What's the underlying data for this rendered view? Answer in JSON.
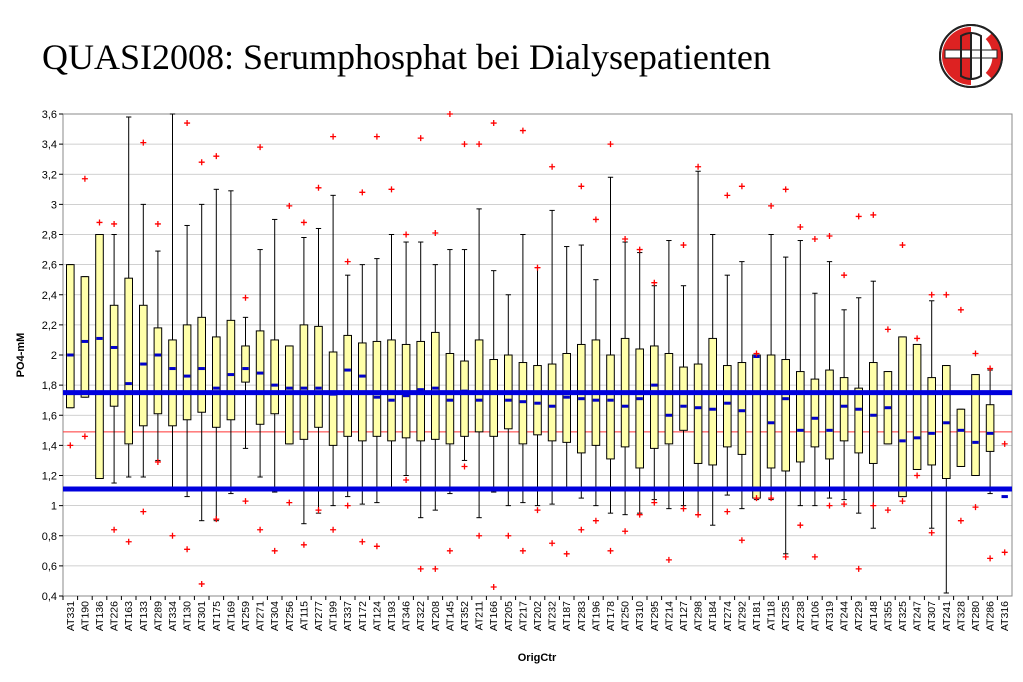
{
  "title": "QUASI2008: Serumphosphat bei Dialysepatienten",
  "colors": {
    "box_fill": "#ffffaa",
    "median": "#0000cc",
    "outlier": "#ff0000",
    "limit_line": "#0000dd",
    "mean_line": "#ff3333",
    "grid": "#c0c0c0",
    "logo_red": "#dd2222"
  },
  "logo": {
    "icon": "lab-emblem-icon"
  },
  "chart_data": {
    "type": "boxplot",
    "title": "",
    "xlabel": "OrigCtr",
    "ylabel": "PO4-mM",
    "ylim": [
      0.4,
      3.6
    ],
    "yticks": [
      "0,4",
      "0,6",
      "0,8",
      "1",
      "1,2",
      "1,4",
      "1,6",
      "1,8",
      "2",
      "2,2",
      "2,4",
      "2,6",
      "2,8",
      "3",
      "3,2",
      "3,4",
      "3,6"
    ],
    "grid": true,
    "reference_lines": [
      {
        "value": 1.75,
        "style": "thick-blue"
      },
      {
        "value": 1.11,
        "style": "thick-blue"
      },
      {
        "value": 1.49,
        "style": "thin-red"
      }
    ],
    "categories": [
      "AT331",
      "AT190",
      "AT136",
      "AT226",
      "AT163",
      "AT133",
      "AT289",
      "AT334",
      "AT130",
      "AT301",
      "AT175",
      "AT169",
      "AT259",
      "AT271",
      "AT304",
      "AT256",
      "AT115",
      "AT277",
      "AT199",
      "AT337",
      "AT172",
      "AT124",
      "AT193",
      "AT346",
      "AT322",
      "AT208",
      "AT145",
      "AT352",
      "AT211",
      "AT166",
      "AT205",
      "AT217",
      "AT202",
      "AT232",
      "AT187",
      "AT283",
      "AT196",
      "AT178",
      "AT250",
      "AT310",
      "AT295",
      "AT214",
      "AT127",
      "AT298",
      "AT184",
      "AT274",
      "AT292",
      "AT181",
      "AT118",
      "AT235",
      "AT238",
      "AT106",
      "AT319",
      "AT244",
      "AT229",
      "AT148",
      "AT355",
      "AT325",
      "AT247",
      "AT307",
      "AT241",
      "AT328",
      "AT280",
      "AT286",
      "AT316"
    ],
    "boxes": [
      {
        "wlo": 1.65,
        "q1": 1.65,
        "med": 2.0,
        "q3": 2.6,
        "whi": 2.6,
        "out": [
          1.4
        ]
      },
      {
        "wlo": 1.72,
        "q1": 1.72,
        "med": 2.09,
        "q3": 2.52,
        "whi": 2.52,
        "out": [
          3.17,
          1.46
        ]
      },
      {
        "wlo": 1.18,
        "q1": 1.18,
        "med": 2.11,
        "q3": 2.8,
        "whi": 2.8,
        "out": [
          2.88
        ]
      },
      {
        "wlo": 1.15,
        "q1": 1.66,
        "med": 2.05,
        "q3": 2.33,
        "whi": 2.8,
        "out": [
          2.87,
          0.84
        ]
      },
      {
        "wlo": 1.19,
        "q1": 1.41,
        "med": 1.81,
        "q3": 2.51,
        "whi": 3.58,
        "out": [
          0.76
        ]
      },
      {
        "wlo": 1.19,
        "q1": 1.53,
        "med": 1.94,
        "q3": 2.33,
        "whi": 3.0,
        "out": [
          3.41,
          0.96
        ]
      },
      {
        "wlo": 1.3,
        "q1": 1.61,
        "med": 2.0,
        "q3": 2.18,
        "whi": 2.69,
        "out": [
          2.87,
          1.29
        ]
      },
      {
        "wlo": 1.1,
        "q1": 1.53,
        "med": 1.91,
        "q3": 2.1,
        "whi": 3.6,
        "out": [
          0.8
        ]
      },
      {
        "wlo": 1.06,
        "q1": 1.57,
        "med": 1.86,
        "q3": 2.2,
        "whi": 2.86,
        "out": [
          3.54,
          0.71
        ]
      },
      {
        "wlo": 0.9,
        "q1": 1.62,
        "med": 1.91,
        "q3": 2.25,
        "whi": 3.0,
        "out": [
          3.28,
          0.48
        ]
      },
      {
        "wlo": 0.9,
        "q1": 1.52,
        "med": 1.78,
        "q3": 2.12,
        "whi": 3.1,
        "out": [
          3.32,
          0.91
        ]
      },
      {
        "wlo": 1.08,
        "q1": 1.57,
        "med": 1.87,
        "q3": 2.23,
        "whi": 3.09,
        "out": []
      },
      {
        "wlo": 1.38,
        "q1": 1.82,
        "med": 1.91,
        "q3": 2.06,
        "whi": 2.25,
        "out": [
          2.38,
          1.03
        ]
      },
      {
        "wlo": 1.19,
        "q1": 1.54,
        "med": 1.88,
        "q3": 2.16,
        "whi": 2.7,
        "out": [
          3.38,
          0.84
        ]
      },
      {
        "wlo": 1.09,
        "q1": 1.61,
        "med": 1.8,
        "q3": 2.1,
        "whi": 2.9,
        "out": [
          0.7
        ]
      },
      {
        "wlo": 1.41,
        "q1": 1.41,
        "med": 1.78,
        "q3": 2.06,
        "whi": 2.06,
        "out": [
          2.99,
          1.02
        ]
      },
      {
        "wlo": 0.88,
        "q1": 1.44,
        "med": 1.78,
        "q3": 2.2,
        "whi": 2.78,
        "out": [
          2.88,
          0.74
        ]
      },
      {
        "wlo": 0.95,
        "q1": 1.52,
        "med": 1.78,
        "q3": 2.19,
        "whi": 2.84,
        "out": [
          3.11,
          0.97
        ]
      },
      {
        "wlo": 1.0,
        "q1": 1.4,
        "med": 1.74,
        "q3": 2.02,
        "whi": 3.06,
        "out": [
          3.45,
          0.84
        ]
      },
      {
        "wlo": 1.06,
        "q1": 1.46,
        "med": 1.9,
        "q3": 2.13,
        "whi": 2.53,
        "out": [
          2.62,
          1.0
        ]
      },
      {
        "wlo": 1.01,
        "q1": 1.43,
        "med": 1.86,
        "q3": 2.08,
        "whi": 2.6,
        "out": [
          3.08,
          0.76
        ]
      },
      {
        "wlo": 1.02,
        "q1": 1.46,
        "med": 1.72,
        "q3": 2.09,
        "whi": 2.64,
        "out": [
          3.45,
          0.73
        ]
      },
      {
        "wlo": 1.1,
        "q1": 1.43,
        "med": 1.7,
        "q3": 2.1,
        "whi": 2.8,
        "out": [
          3.1
        ]
      },
      {
        "wlo": 1.2,
        "q1": 1.45,
        "med": 1.73,
        "q3": 2.07,
        "whi": 2.75,
        "out": [
          2.8,
          1.17
        ]
      },
      {
        "wlo": 0.92,
        "q1": 1.43,
        "med": 1.77,
        "q3": 2.09,
        "whi": 2.75,
        "out": [
          3.44,
          0.58
        ]
      },
      {
        "wlo": 0.97,
        "q1": 1.44,
        "med": 1.78,
        "q3": 2.15,
        "whi": 2.6,
        "out": [
          2.81,
          0.58
        ]
      },
      {
        "wlo": 1.08,
        "q1": 1.41,
        "med": 1.7,
        "q3": 2.01,
        "whi": 2.7,
        "out": [
          3.6,
          0.7
        ]
      },
      {
        "wlo": 1.3,
        "q1": 1.46,
        "med": 1.76,
        "q3": 1.96,
        "whi": 2.7,
        "out": [
          3.4,
          1.26
        ]
      },
      {
        "wlo": 0.92,
        "q1": 1.49,
        "med": 1.7,
        "q3": 2.1,
        "whi": 2.97,
        "out": [
          3.4,
          0.8
        ]
      },
      {
        "wlo": 1.09,
        "q1": 1.46,
        "med": 1.75,
        "q3": 1.97,
        "whi": 2.56,
        "out": [
          3.54,
          0.46
        ]
      },
      {
        "wlo": 1.0,
        "q1": 1.51,
        "med": 1.7,
        "q3": 2.0,
        "whi": 2.4,
        "out": [
          0.8
        ]
      },
      {
        "wlo": 1.02,
        "q1": 1.41,
        "med": 1.69,
        "q3": 1.95,
        "whi": 2.8,
        "out": [
          3.49,
          0.7
        ]
      },
      {
        "wlo": 1.0,
        "q1": 1.47,
        "med": 1.68,
        "q3": 1.93,
        "whi": 2.58,
        "out": [
          2.58,
          0.97
        ]
      },
      {
        "wlo": 1.01,
        "q1": 1.43,
        "med": 1.66,
        "q3": 1.94,
        "whi": 2.96,
        "out": [
          3.25,
          0.75
        ]
      },
      {
        "wlo": 1.1,
        "q1": 1.42,
        "med": 1.72,
        "q3": 2.01,
        "whi": 2.72,
        "out": [
          0.68
        ]
      },
      {
        "wlo": 1.05,
        "q1": 1.35,
        "med": 1.71,
        "q3": 2.07,
        "whi": 2.73,
        "out": [
          3.12,
          0.84
        ]
      },
      {
        "wlo": 1.0,
        "q1": 1.4,
        "med": 1.7,
        "q3": 2.1,
        "whi": 2.5,
        "out": [
          2.9,
          0.9
        ]
      },
      {
        "wlo": 0.95,
        "q1": 1.31,
        "med": 1.7,
        "q3": 2.0,
        "whi": 3.18,
        "out": [
          3.4,
          0.7
        ]
      },
      {
        "wlo": 0.94,
        "q1": 1.39,
        "med": 1.66,
        "q3": 2.11,
        "whi": 2.75,
        "out": [
          2.77,
          0.83
        ]
      },
      {
        "wlo": 0.95,
        "q1": 1.25,
        "med": 1.71,
        "q3": 2.04,
        "whi": 2.68,
        "out": [
          2.7,
          0.94
        ]
      },
      {
        "wlo": 1.04,
        "q1": 1.38,
        "med": 1.8,
        "q3": 2.06,
        "whi": 2.46,
        "out": [
          2.48,
          1.02
        ]
      },
      {
        "wlo": 0.98,
        "q1": 1.41,
        "med": 1.6,
        "q3": 2.01,
        "whi": 2.76,
        "out": [
          0.64
        ]
      },
      {
        "wlo": 1.0,
        "q1": 1.5,
        "med": 1.66,
        "q3": 1.92,
        "whi": 2.46,
        "out": [
          2.73,
          0.98
        ]
      },
      {
        "wlo": 0.94,
        "q1": 1.28,
        "med": 1.65,
        "q3": 1.94,
        "whi": 3.22,
        "out": [
          3.25,
          0.94
        ]
      },
      {
        "wlo": 0.87,
        "q1": 1.27,
        "med": 1.64,
        "q3": 2.11,
        "whi": 2.8,
        "out": []
      },
      {
        "wlo": 1.07,
        "q1": 1.39,
        "med": 1.68,
        "q3": 1.93,
        "whi": 2.53,
        "out": [
          3.06,
          0.96
        ]
      },
      {
        "wlo": 0.98,
        "q1": 1.34,
        "med": 1.63,
        "q3": 1.95,
        "whi": 2.62,
        "out": [
          3.12,
          0.77
        ]
      },
      {
        "wlo": 1.04,
        "q1": 1.05,
        "med": 1.99,
        "q3": 2.0,
        "whi": 2.0,
        "out": [
          2.01,
          1.05
        ]
      },
      {
        "wlo": 1.04,
        "q1": 1.25,
        "med": 1.55,
        "q3": 2.0,
        "whi": 2.8,
        "out": [
          2.99,
          1.05
        ]
      },
      {
        "wlo": 0.68,
        "q1": 1.23,
        "med": 1.71,
        "q3": 1.97,
        "whi": 2.65,
        "out": [
          3.1,
          0.66
        ]
      },
      {
        "wlo": 1.0,
        "q1": 1.29,
        "med": 1.5,
        "q3": 1.89,
        "whi": 2.76,
        "out": [
          2.85,
          0.87
        ]
      },
      {
        "wlo": 1.0,
        "q1": 1.39,
        "med": 1.58,
        "q3": 1.84,
        "whi": 2.41,
        "out": [
          2.77,
          0.66
        ]
      },
      {
        "wlo": 1.05,
        "q1": 1.31,
        "med": 1.5,
        "q3": 1.9,
        "whi": 2.62,
        "out": [
          2.79,
          1.0
        ]
      },
      {
        "wlo": 1.04,
        "q1": 1.43,
        "med": 1.66,
        "q3": 1.85,
        "whi": 2.3,
        "out": [
          2.53,
          1.01
        ]
      },
      {
        "wlo": 0.95,
        "q1": 1.35,
        "med": 1.64,
        "q3": 1.78,
        "whi": 2.38,
        "out": [
          2.92,
          0.58
        ]
      },
      {
        "wlo": 0.85,
        "q1": 1.28,
        "med": 1.6,
        "q3": 1.95,
        "whi": 2.49,
        "out": [
          2.93,
          1.0
        ]
      },
      {
        "wlo": 1.41,
        "q1": 1.41,
        "med": 1.65,
        "q3": 1.89,
        "whi": 1.89,
        "out": [
          2.17,
          0.97
        ]
      },
      {
        "wlo": 1.06,
        "q1": 1.06,
        "med": 1.43,
        "q3": 2.12,
        "whi": 2.12,
        "out": [
          2.73,
          1.03
        ]
      },
      {
        "wlo": 1.24,
        "q1": 1.24,
        "med": 1.45,
        "q3": 2.07,
        "whi": 2.07,
        "out": [
          2.11,
          1.2
        ]
      },
      {
        "wlo": 0.85,
        "q1": 1.27,
        "med": 1.48,
        "q3": 1.85,
        "whi": 2.36,
        "out": [
          2.4,
          0.82
        ]
      },
      {
        "wlo": 0.42,
        "q1": 1.18,
        "med": 1.55,
        "q3": 1.93,
        "whi": 1.93,
        "out": [
          2.4
        ]
      },
      {
        "wlo": 1.26,
        "q1": 1.26,
        "med": 1.5,
        "q3": 1.64,
        "whi": 1.64,
        "out": [
          2.3,
          0.9
        ]
      },
      {
        "wlo": 1.2,
        "q1": 1.2,
        "med": 1.42,
        "q3": 1.87,
        "whi": 1.87,
        "out": [
          2.01,
          0.99
        ]
      },
      {
        "wlo": 1.08,
        "q1": 1.36,
        "med": 1.48,
        "q3": 1.67,
        "whi": 1.9,
        "out": [
          1.91,
          0.65
        ]
      },
      {
        "wlo": null,
        "q1": null,
        "med": 1.06,
        "q3": null,
        "whi": null,
        "out": [
          1.41,
          0.69
        ]
      }
    ]
  }
}
